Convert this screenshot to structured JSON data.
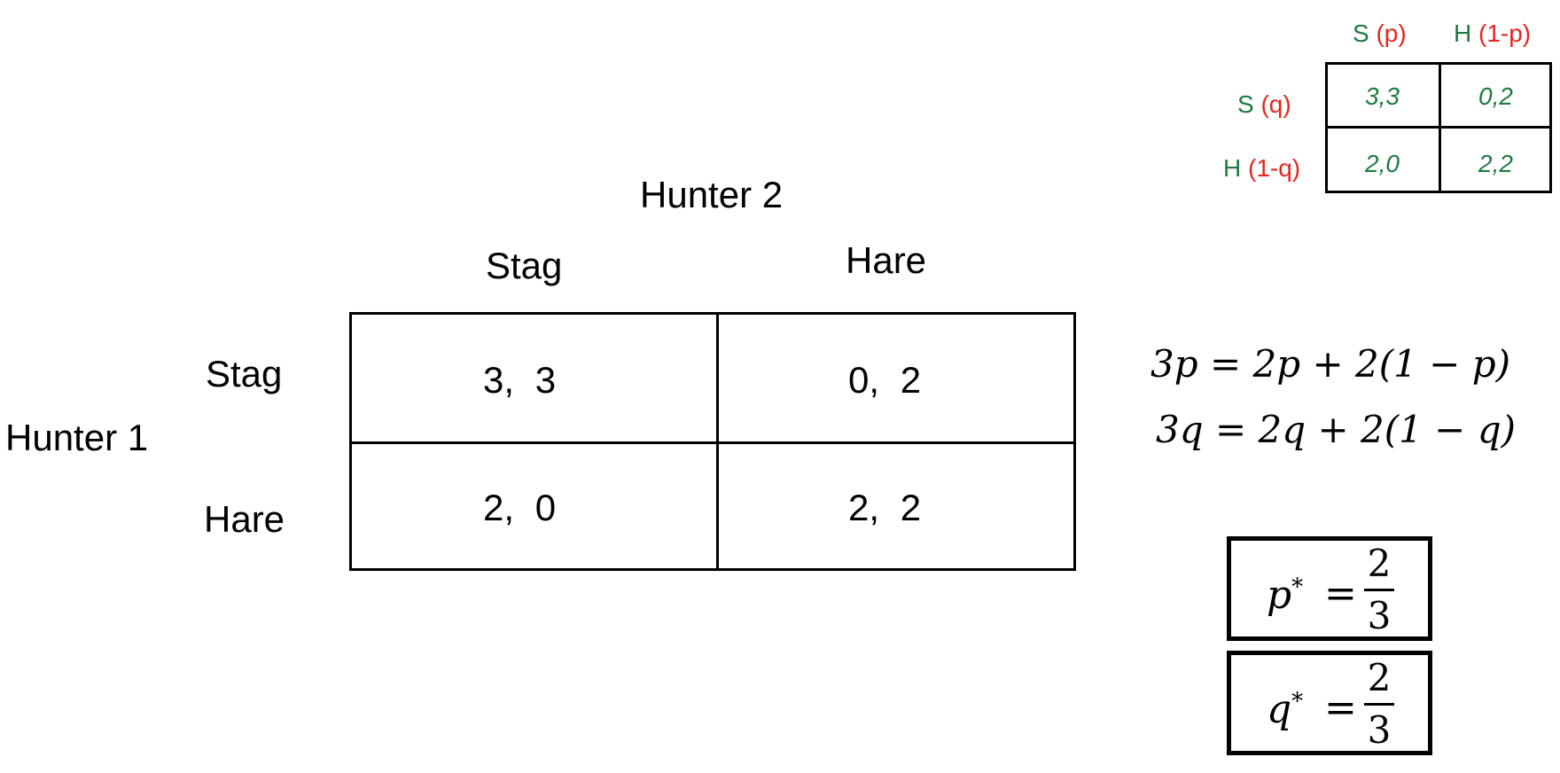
{
  "game": {
    "column_player": "Hunter 2",
    "row_player": "Hunter 1",
    "col_strategies": [
      "Stag",
      "Hare"
    ],
    "row_strategies": [
      "Stag",
      "Hare"
    ],
    "payoffs": [
      [
        "3,  3",
        "0,  2"
      ],
      [
        "2,  0",
        "2,  2"
      ]
    ]
  },
  "mini": {
    "col_headers": [
      {
        "strategy": "S",
        "prob": "(p)"
      },
      {
        "strategy": "H",
        "prob": "(1-p)"
      }
    ],
    "row_headers": [
      {
        "strategy": "S",
        "prob": "(q)"
      },
      {
        "strategy": "H",
        "prob": "(1-q)"
      }
    ],
    "cells": [
      [
        "3,3",
        "0,2"
      ],
      [
        "2,0",
        "2,2"
      ]
    ]
  },
  "equations": [
    "3p = 2p + 2(1 − p)",
    "3q = 2q + 2(1 − q)"
  ],
  "solutions": [
    {
      "var": "p",
      "sup": "*",
      "eq": "=",
      "num": "2",
      "den": "3"
    },
    {
      "var": "q",
      "sup": "*",
      "eq": "=",
      "num": "2",
      "den": "3"
    }
  ],
  "colors": {
    "strategy": "#1e7b3f",
    "probability": "#e32620"
  }
}
